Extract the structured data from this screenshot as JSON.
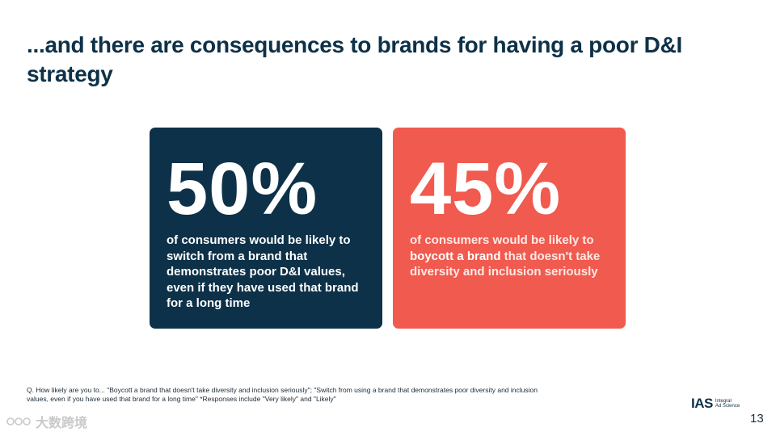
{
  "slide": {
    "title": "...and there are consequences to brands for having a poor D&I strategy",
    "page_number": "13"
  },
  "cards": [
    {
      "stat": "50%",
      "desc_before": "of consumers would be likely to ",
      "desc_bold": "switch from a brand",
      "desc_after": " that demonstrates poor D&I values, even if they have used that brand for a long time",
      "color": "#0d3148"
    },
    {
      "stat": "45%",
      "desc_before": "of consumers would be likely to ",
      "desc_bold": "boycott a brand",
      "desc_after": " that doesn't take diversity and inclusion seriously",
      "color": "#f15a4e"
    }
  ],
  "footnote": "Q. How likely are you to... \"Boycott a brand that doesn't take diversity and inclusion seriously\"; \"Switch from using a brand that demonstrates poor diversity and inclusion values, even if you have used that brand for a long time\" *Responses include \"Very likely\" and \"Likely\"",
  "logo": {
    "main": "IAS",
    "line1": "Integral",
    "line2": "Ad Science"
  },
  "watermark": {
    "text": "大数跨境",
    "icon": "brand-watermark-icon"
  }
}
